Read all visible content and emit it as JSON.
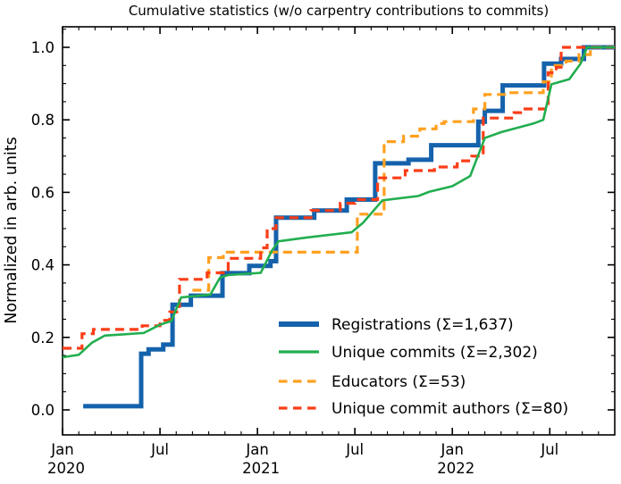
{
  "title": "Cumulative statistics (w/o carpentry contributions to commits)",
  "y_axis": {
    "label": "Normalized in arb. units",
    "tick_labels": [
      "0.0",
      "0.2",
      "0.4",
      "0.6",
      "0.8",
      "1.0"
    ],
    "tick_values": [
      0.0,
      0.2,
      0.4,
      0.6,
      0.8,
      1.0
    ],
    "minor_step": 0.05
  },
  "x_axis": {
    "major_ticks": [
      {
        "month": 0,
        "label": "Jan",
        "year": "2020"
      },
      {
        "month": 6,
        "label": "Jul",
        "year": ""
      },
      {
        "month": 12,
        "label": "Jan",
        "year": "2021"
      },
      {
        "month": 18,
        "label": "Jul",
        "year": ""
      },
      {
        "month": 24,
        "label": "Jan",
        "year": "2022"
      },
      {
        "month": 30,
        "label": "Jul",
        "year": ""
      }
    ],
    "minor_step_months": 1,
    "range_months": [
      0,
      34
    ]
  },
  "chart_data": {
    "type": "line",
    "title": "Cumulative statistics (w/o carpentry contributions to commits)",
    "xlabel": "",
    "ylabel": "Normalized in arb. units",
    "x_unit": "months since 2020-01-01",
    "xlim_months": [
      0,
      34
    ],
    "ylim": [
      -0.07,
      1.06
    ],
    "grid": false,
    "legend_position": "lower right",
    "series": [
      {
        "name": "Registrations",
        "label": "Registrations  (Σ=1,637)",
        "total": 1637,
        "color": "#1562ac",
        "dash": "solid",
        "width": 5,
        "interp": "step",
        "points": [
          [
            1.27,
            0.01
          ],
          [
            4.84,
            0.155
          ],
          [
            5.3,
            0.167
          ],
          [
            6.2,
            0.18
          ],
          [
            6.77,
            0.29
          ],
          [
            7.9,
            0.315
          ],
          [
            9.85,
            0.377
          ],
          [
            11.5,
            0.397
          ],
          [
            12.8,
            0.41
          ],
          [
            13.15,
            0.53
          ],
          [
            15.5,
            0.55
          ],
          [
            17.5,
            0.58
          ],
          [
            19.25,
            0.68
          ],
          [
            21.3,
            0.69
          ],
          [
            22.7,
            0.73
          ],
          [
            25.6,
            0.795
          ],
          [
            26.0,
            0.825
          ],
          [
            27.1,
            0.895
          ],
          [
            29.65,
            0.955
          ],
          [
            30.7,
            0.968
          ],
          [
            32.1,
            1.0
          ],
          [
            34,
            1.0
          ]
        ]
      },
      {
        "name": "Unique commits",
        "label": "Unique commits (Σ=2,302)",
        "total": 2302,
        "color": "#22ae4f",
        "dash": "solid",
        "width": 2.6,
        "interp": "linear",
        "points": [
          [
            0,
            0.145
          ],
          [
            1,
            0.152
          ],
          [
            1.8,
            0.185
          ],
          [
            2.6,
            0.205
          ],
          [
            5,
            0.212
          ],
          [
            6,
            0.235
          ],
          [
            6.7,
            0.245
          ],
          [
            7.3,
            0.31
          ],
          [
            9.1,
            0.318
          ],
          [
            9.7,
            0.365
          ],
          [
            10.2,
            0.372
          ],
          [
            12.2,
            0.378
          ],
          [
            12.9,
            0.44
          ],
          [
            13.3,
            0.465
          ],
          [
            15,
            0.475
          ],
          [
            17.8,
            0.49
          ],
          [
            18.5,
            0.516
          ],
          [
            19.7,
            0.578
          ],
          [
            21.9,
            0.59
          ],
          [
            22.6,
            0.602
          ],
          [
            24,
            0.617
          ],
          [
            25.1,
            0.645
          ],
          [
            26,
            0.75
          ],
          [
            27,
            0.766
          ],
          [
            29,
            0.79
          ],
          [
            29.6,
            0.8
          ],
          [
            30.1,
            0.898
          ],
          [
            31.2,
            0.912
          ],
          [
            31.9,
            0.955
          ],
          [
            32.3,
            1.0
          ],
          [
            34,
            1.0
          ]
        ]
      },
      {
        "name": "Educators",
        "label": "Educators (Σ=53)",
        "total": 53,
        "color": "#ffa01f",
        "dash": "dashed",
        "width": 3.2,
        "interp": "step",
        "points": [
          [
            8.0,
            0.33
          ],
          [
            9.0,
            0.42
          ],
          [
            9.9,
            0.435
          ],
          [
            18.15,
            0.54
          ],
          [
            19.8,
            0.74
          ],
          [
            21,
            0.755
          ],
          [
            22,
            0.775
          ],
          [
            23,
            0.79
          ],
          [
            23.5,
            0.795
          ],
          [
            25.3,
            0.83
          ],
          [
            26,
            0.87
          ],
          [
            27.5,
            0.875
          ],
          [
            29.6,
            0.905
          ],
          [
            30.1,
            0.95
          ],
          [
            31,
            0.962
          ],
          [
            31.8,
            0.98
          ],
          [
            32.5,
            1.0
          ],
          [
            34,
            1.0
          ]
        ]
      },
      {
        "name": "Unique commit authors",
        "label": "Unique commit authors (Σ=80)",
        "total": 80,
        "color": "#fb3e17",
        "dash": "dashed",
        "width": 3.2,
        "interp": "step",
        "points": [
          [
            0,
            0.17
          ],
          [
            1.2,
            0.21
          ],
          [
            1.9,
            0.222
          ],
          [
            4.9,
            0.232
          ],
          [
            6.0,
            0.247
          ],
          [
            6.6,
            0.27
          ],
          [
            7.2,
            0.36
          ],
          [
            8.9,
            0.378
          ],
          [
            10.2,
            0.418
          ],
          [
            12.2,
            0.447
          ],
          [
            12.6,
            0.5
          ],
          [
            13.15,
            0.53
          ],
          [
            15.3,
            0.55
          ],
          [
            17.1,
            0.57
          ],
          [
            18,
            0.58
          ],
          [
            19.4,
            0.64
          ],
          [
            21.1,
            0.66
          ],
          [
            22.9,
            0.67
          ],
          [
            24.3,
            0.687
          ],
          [
            25.2,
            0.7
          ],
          [
            25.9,
            0.805
          ],
          [
            27.8,
            0.82
          ],
          [
            28.2,
            0.83
          ],
          [
            29.9,
            0.93
          ],
          [
            30.4,
            0.945
          ],
          [
            30.7,
            1.0
          ],
          [
            34,
            1.0
          ]
        ]
      }
    ]
  }
}
